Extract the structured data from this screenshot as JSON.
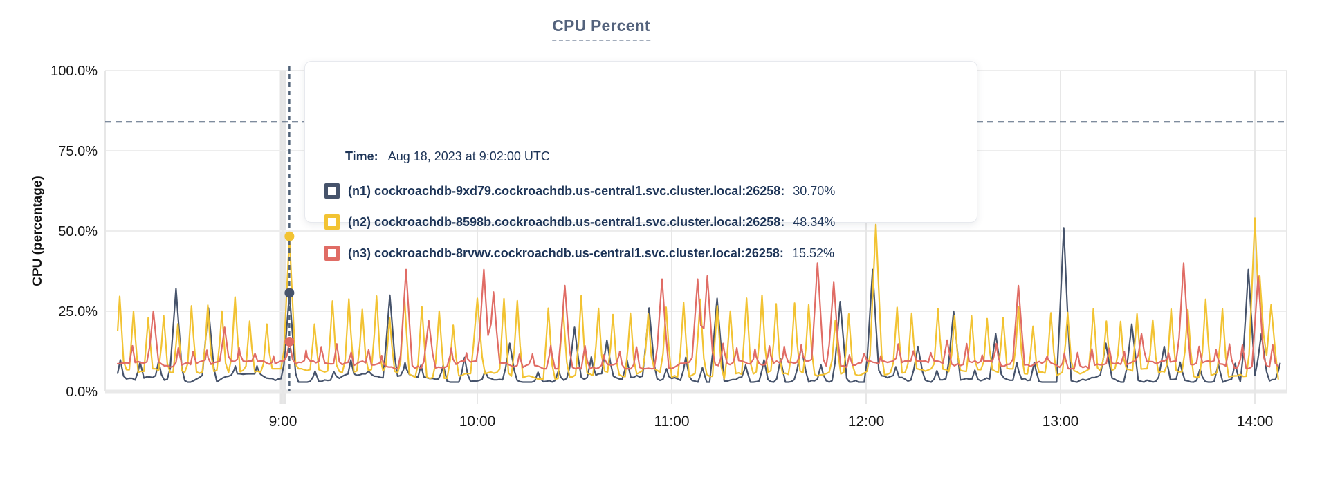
{
  "header": {
    "title": "CPU Percent"
  },
  "tooltip": {
    "time_label": "Time:",
    "time_value": "Aug 18, 2023 at 9:02:00 UTC"
  },
  "chart_data": {
    "type": "line",
    "title": "CPU Percent",
    "ylabel": "CPU (percentage)",
    "xlabel": "",
    "ylim": [
      0,
      100
    ],
    "grid": true,
    "y_ticks": [
      {
        "value": 0,
        "label": "0.0%"
      },
      {
        "value": 25,
        "label": "25.0%"
      },
      {
        "value": 50,
        "label": "50.0%"
      },
      {
        "value": 75,
        "label": "75.0%"
      },
      {
        "value": 100,
        "label": "100.0%"
      }
    ],
    "x_ticks": [
      {
        "minute": 540,
        "label": "9:00"
      },
      {
        "minute": 600,
        "label": "10:00"
      },
      {
        "minute": 660,
        "label": "11:00"
      },
      {
        "minute": 720,
        "label": "12:00"
      },
      {
        "minute": 780,
        "label": "13:00"
      },
      {
        "minute": 840,
        "label": "14:00"
      }
    ],
    "x_range_minutes": [
      489,
      848
    ],
    "dashed_threshold_pct": 84,
    "hover": {
      "minute": 542,
      "band_minute": 540,
      "time": "Aug 18, 2023 at 9:02:00 UTC",
      "line_color": "#4e6076",
      "band_color": "#e5e5e5"
    },
    "minor_spike_half_width_min": 1.6,
    "major_spike_half_width_min": 2.2,
    "series": [
      {
        "id": "n1",
        "label": "(n1) cockroachdb-9xd79.cockroachdb.us-central1.svc.cluster.local:26258:",
        "value": "30.70%",
        "hover_value_pct": 30.7,
        "color": "#46536b",
        "baseline_pct": 4.2,
        "noise_pct": 1.3,
        "seed": 101,
        "minor_spikes": {
          "period_min": 6.0,
          "peak_min_pct": 6,
          "peak_max_pct": 11
        },
        "major_spikes": [
          [
            507,
            32
          ],
          [
            517,
            26
          ],
          [
            542,
            30.7
          ],
          [
            573,
            30
          ],
          [
            610,
            15
          ],
          [
            630,
            20
          ],
          [
            640,
            16
          ],
          [
            653,
            26
          ],
          [
            674,
            29
          ],
          [
            700,
            14
          ],
          [
            712,
            28
          ],
          [
            722,
            38
          ],
          [
            736,
            14
          ],
          [
            747,
            25
          ],
          [
            760,
            18
          ],
          [
            781,
            51
          ],
          [
            794,
            15
          ],
          [
            802,
            21
          ],
          [
            812,
            14
          ],
          [
            838,
            38
          ],
          [
            842,
            18
          ]
        ]
      },
      {
        "id": "n2",
        "label": "(n2) cockroachdb-8598b.cockroachdb.us-central1.svc.cluster.local:26258:",
        "value": "48.34%",
        "hover_value_pct": 48.34,
        "color": "#f2c333",
        "baseline_pct": 5.5,
        "noise_pct": 1.6,
        "seed": 202,
        "minor_spikes": {
          "period_min": 4.8,
          "peak_min_pct": 20,
          "peak_max_pct": 30
        },
        "major_spikes": [
          [
            542,
            48.34
          ],
          [
            600,
            29
          ],
          [
            723,
            52
          ],
          [
            840,
            54
          ],
          [
            841.5,
            36
          ],
          [
            845,
            27
          ]
        ]
      },
      {
        "id": "n3",
        "label": "(n3) cockroachdb-8rvwv.cockroachdb.us-central1.svc.cluster.local:26258:",
        "value": "15.52%",
        "hover_value_pct": 15.52,
        "color": "#e06c65",
        "baseline_pct": 8.3,
        "noise_pct": 1.2,
        "seed": 303,
        "minor_spikes": {
          "period_min": 4.9,
          "peak_min_pct": 11,
          "peak_max_pct": 15
        },
        "major_spikes": [
          [
            500,
            25
          ],
          [
            522,
            20
          ],
          [
            542,
            15.52
          ],
          [
            578,
            38
          ],
          [
            585,
            22
          ],
          [
            602,
            38
          ],
          [
            605,
            31
          ],
          [
            627,
            33
          ],
          [
            657,
            35
          ],
          [
            668,
            35
          ],
          [
            671,
            36
          ],
          [
            705,
            40
          ],
          [
            710,
            34
          ],
          [
            745,
            16
          ],
          [
            767,
            33
          ],
          [
            805,
            18
          ],
          [
            818,
            40
          ],
          [
            841,
            36
          ]
        ]
      }
    ],
    "colors": {
      "grid": "#ededed",
      "hour_grid": "#e7e7e7",
      "zero_line": "#e9e9e9",
      "threshold_dash": "#54677e",
      "title": "#53627c",
      "tooltip_text": "#1d3457"
    },
    "legend_position": "tooltip-overlay"
  }
}
